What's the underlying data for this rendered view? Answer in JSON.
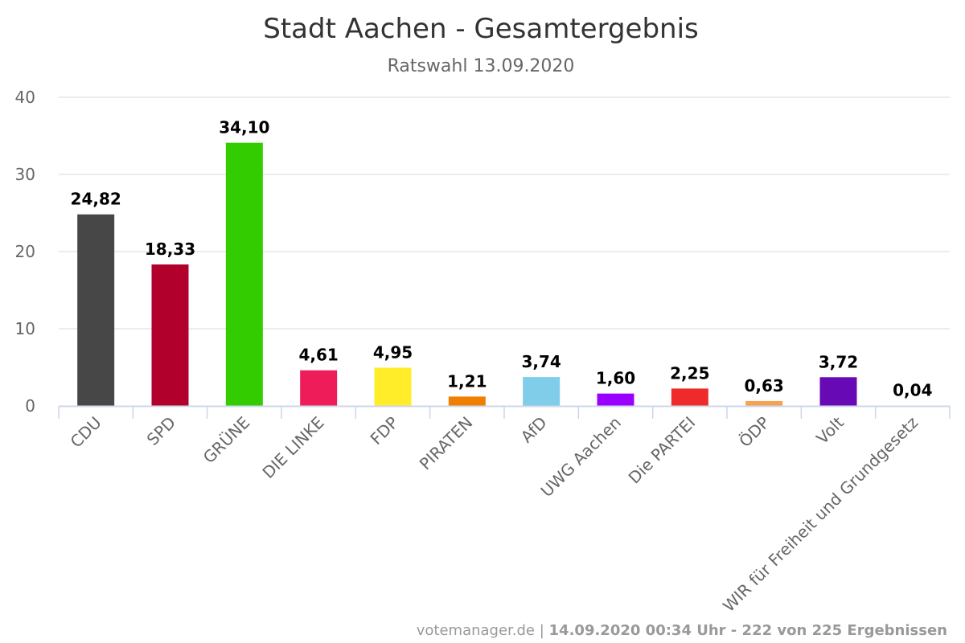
{
  "chart_data": {
    "type": "bar",
    "title": "Stadt Aachen - Gesamtergebnis",
    "subtitle": "Ratswahl 13.09.2020",
    "categories": [
      "CDU",
      "SPD",
      "GRÜNE",
      "DIE LINKE",
      "FDP",
      "PIRATEN",
      "AfD",
      "UWG Aachen",
      "Die PARTEI",
      "ÖDP",
      "Volt",
      "WIR für Freiheit und Grundgesetz"
    ],
    "values": [
      24.82,
      18.33,
      34.1,
      4.61,
      4.95,
      1.21,
      3.74,
      1.6,
      2.25,
      0.63,
      3.72,
      0.04
    ],
    "value_labels": [
      "24,82",
      "18,33",
      "34,10",
      "4,61",
      "4,95",
      "1,21",
      "3,74",
      "1,60",
      "2,25",
      "0,63",
      "3,72",
      "0,04"
    ],
    "colors": [
      "#474747",
      "#b2002d",
      "#33cc00",
      "#ee1d5a",
      "#ffed29",
      "#f07e00",
      "#80cde9",
      "#9900ff",
      "#ee2a2a",
      "#f5a352",
      "#6709b4",
      "#dddddd"
    ],
    "yticks": [
      "0",
      "10",
      "20",
      "30",
      "40"
    ],
    "ylim": [
      0,
      40
    ],
    "grid": true,
    "legend": false
  },
  "credit": {
    "source": "votemanager.de",
    "separator": " | ",
    "status": "14.09.2020 00:34 Uhr - 222 von 225 Ergebnissen"
  }
}
